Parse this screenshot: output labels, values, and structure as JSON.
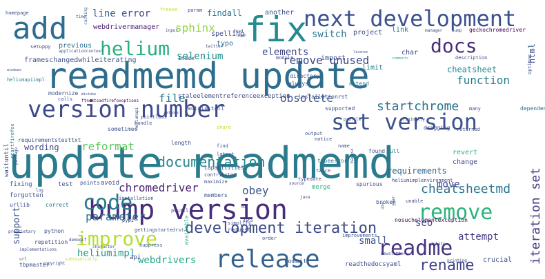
{
  "word_cloud": {
    "words": [
      {
        "text": "update readmemd",
        "color": "#2a7b8e"
      },
      {
        "text": "readmemd update",
        "color": "#2e6d8e"
      },
      {
        "text": "bump version",
        "color": "#472c7a"
      },
      {
        "text": "release",
        "color": "#33638d"
      },
      {
        "text": "fix",
        "color": "#238a8d"
      },
      {
        "text": "add",
        "color": "#2f6c8e"
      },
      {
        "text": "next development",
        "color": "#3b528b"
      },
      {
        "text": "version number",
        "color": "#3e4a89"
      },
      {
        "text": "set version",
        "color": "#3b528b"
      },
      {
        "text": "readme",
        "color": "#46337f"
      },
      {
        "text": "improve",
        "color": "#b5de2b"
      },
      {
        "text": "code",
        "color": "#287c8e"
      },
      {
        "text": "remove",
        "color": "#2db27d"
      },
      {
        "text": "helium",
        "color": "#2ab07f"
      },
      {
        "text": "docs",
        "color": "#472d7b"
      },
      {
        "text": "development iteration",
        "color": "#3e4a89"
      },
      {
        "text": "rename",
        "color": "#414487"
      },
      {
        "text": "iteration set",
        "color": "#433e85"
      },
      {
        "text": "documentation",
        "color": "#24868e"
      },
      {
        "text": "startchrome",
        "color": "#2c728e"
      },
      {
        "text": "cheatsheetmd",
        "color": "#2c728e"
      },
      {
        "text": "sphinx",
        "color": "#8fd744"
      },
      {
        "text": "remove unused",
        "color": "#3f4788"
      },
      {
        "text": "chromedriver",
        "color": "#482475"
      },
      {
        "text": "obey",
        "color": "#3b528b"
      },
      {
        "text": "reformat",
        "color": "#5ec962"
      },
      {
        "text": "file",
        "color": "#2a788e"
      },
      {
        "text": "obsolete",
        "color": "#3b528b"
      },
      {
        "text": "function",
        "color": "#287d8e"
      },
      {
        "text": "parameter",
        "color": "#2a788e"
      },
      {
        "text": "selenium",
        "color": "#228d8d"
      },
      {
        "text": "elements",
        "color": "#3e4989"
      },
      {
        "text": "line",
        "color": "#355f8d"
      },
      {
        "text": "error",
        "color": "#3f4889"
      },
      {
        "text": "switch",
        "color": "#2a788e"
      },
      {
        "text": "webdrivers",
        "color": "#22a785"
      },
      {
        "text": "small",
        "color": "#3b528b"
      },
      {
        "text": "seo",
        "color": "#3e4989"
      },
      {
        "text": "move",
        "color": "#424086"
      },
      {
        "text": "heliumimpl",
        "color": "#1f9a8a"
      },
      {
        "text": "attempt",
        "color": "#453781"
      },
      {
        "text": "support",
        "color": "#3a548c"
      },
      {
        "text": "html",
        "color": "#3b528b"
      },
      {
        "text": "cheatsheet",
        "color": "#24868e"
      },
      {
        "text": "wording",
        "color": "#404688"
      },
      {
        "text": "requirements",
        "color": "#32658e"
      },
      {
        "text": "findall",
        "color": "#2a788e"
      },
      {
        "text": "webdrivermanager",
        "color": "#48186a"
      },
      {
        "text": "frameschangedwhileiterating",
        "color": "#3b528b"
      },
      {
        "text": "staleelementreferenceexception",
        "color": "#3e4989"
      },
      {
        "text": "previous",
        "color": "#2d708e"
      },
      {
        "text": "typo",
        "color": "#2f6b8e"
      },
      {
        "text": "spelling",
        "color": "#3e4989"
      },
      {
        "text": "link",
        "color": "#2c728e"
      },
      {
        "text": "project",
        "color": "#3e4989"
      },
      {
        "text": "import",
        "color": "#3b528b"
      },
      {
        "text": "limit",
        "color": "#287c8e"
      },
      {
        "text": "char",
        "color": "#404688"
      },
      {
        "text": "another",
        "color": "#3b528b"
      },
      {
        "text": "caching",
        "color": "#31688e"
      },
      {
        "text": "homepage",
        "color": "#3e4a89"
      },
      {
        "text": "param",
        "color": "#3b528b"
      },
      {
        "text": "freeze",
        "color": "#bddf26"
      },
      {
        "text": "manager",
        "color": "#3e4a89"
      },
      {
        "text": "bump",
        "color": "#3b528b"
      },
      {
        "text": "geckochromedriver",
        "color": "#440154"
      },
      {
        "text": "setuppy",
        "color": "#424086"
      },
      {
        "text": "applicationcontext",
        "color": "#3b528b"
      },
      {
        "text": "twitter",
        "color": "#3e4989"
      },
      {
        "text": "windows",
        "color": "#404688"
      },
      {
        "text": "heliumapiimpl",
        "color": "#2a788e"
      },
      {
        "text": "index",
        "color": "#3b528b"
      },
      {
        "text": "module",
        "color": "#414487"
      },
      {
        "text": "directory",
        "color": "#3b528b"
      },
      {
        "text": "always",
        "color": "#3e4989"
      },
      {
        "text": "installationrst",
        "color": "#3b528b"
      },
      {
        "text": "supported",
        "color": "#3b528b"
      },
      {
        "text": "extend",
        "color": "#2a788e"
      },
      {
        "text": "many",
        "color": "#404688"
      },
      {
        "text": "returned",
        "color": "#3e4989"
      },
      {
        "text": "dependency",
        "color": "#2c728e"
      },
      {
        "text": "options",
        "color": "#3b528b"
      },
      {
        "text": "description",
        "color": "#404688"
      },
      {
        "text": "comments",
        "color": "#2db27d"
      },
      {
        "text": "license",
        "color": "#3e4989"
      },
      {
        "text": "modernize",
        "color": "#3b528b"
      },
      {
        "text": "calls",
        "color": "#3b528b"
      },
      {
        "text": "mistake",
        "color": "#3e4989"
      },
      {
        "text": "ftnextsadfirefoxoptions",
        "color": "#440154"
      },
      {
        "text": "autoinstall",
        "color": "#3b528b"
      },
      {
        "text": "dragging",
        "color": "#3e4989"
      },
      {
        "text": "waituntil",
        "color": "#3b528b"
      },
      {
        "text": "startfirefox",
        "color": "#2a788e"
      },
      {
        "text": "pointless",
        "color": "#3e4989"
      },
      {
        "text": "handle",
        "color": "#3b528b"
      },
      {
        "text": "methods",
        "color": "#3e4989"
      },
      {
        "text": "share",
        "color": "#bddf26"
      },
      {
        "text": "profile",
        "color": "#3b528b"
      },
      {
        "text": "originally",
        "color": "#3e4989"
      },
      {
        "text": "output",
        "color": "#3b528b"
      },
      {
        "text": "notice",
        "color": "#3e4989"
      },
      {
        "text": "found",
        "color": "#3b528b"
      },
      {
        "text": "pull",
        "color": "#2a788e"
      },
      {
        "text": "change",
        "color": "#3e4989"
      },
      {
        "text": "revert",
        "color": "#2db27d"
      },
      {
        "text": "sometimes",
        "color": "#3b528b"
      },
      {
        "text": "requirementstesttxt",
        "color": "#3b528b"
      },
      {
        "text": "length",
        "color": "#3e4989"
      },
      {
        "text": "find",
        "color": "#3b528b"
      },
      {
        "text": "latest",
        "color": "#3e4989"
      },
      {
        "text": "typeerror",
        "color": "#2a788e"
      },
      {
        "text": "name",
        "color": "#3b528b"
      },
      {
        "text": "capabilities",
        "color": "#3b528b"
      },
      {
        "text": "contributor",
        "color": "#3e4989"
      },
      {
        "text": "maximize",
        "color": "#3b528b"
      },
      {
        "text": "fixing",
        "color": "#3b528b"
      },
      {
        "text": "test",
        "color": "#3e4989"
      },
      {
        "text": "points",
        "color": "#3b528b"
      },
      {
        "text": "avoid",
        "color": "#3e4989"
      },
      {
        "text": "merge",
        "color": "#2db27d"
      },
      {
        "text": "twice",
        "color": "#3b528b"
      },
      {
        "text": "typedate",
        "color": "#3e4989"
      },
      {
        "text": "spurious",
        "color": "#3b528b"
      },
      {
        "text": "heliumimplenvironment",
        "color": "#3e4989"
      },
      {
        "text": "broken",
        "color": "#3b528b"
      },
      {
        "text": "unable",
        "color": "#3e4989"
      },
      {
        "text": "year",
        "color": "#3b528b"
      },
      {
        "text": "forgotten",
        "color": "#3b528b"
      },
      {
        "text": "urllib",
        "color": "#3e4989"
      },
      {
        "text": "correct",
        "color": "#2a788e"
      },
      {
        "text": "members",
        "color": "#3b528b"
      },
      {
        "text": "installation",
        "color": "#3e4989"
      },
      {
        "text": "nosuchelementexception",
        "color": "#440154"
      },
      {
        "text": "gettingstartedrst",
        "color": "#3b528b"
      },
      {
        "text": "pypi",
        "color": "#3e4989"
      },
      {
        "text": "python",
        "color": "#3b528b"
      },
      {
        "text": "demogif",
        "color": "#3e4989"
      },
      {
        "text": "character",
        "color": "#3b528b"
      },
      {
        "text": "proprietary",
        "color": "#3e4989"
      },
      {
        "text": "repetition",
        "color": "#3b528b"
      },
      {
        "text": "implementations",
        "color": "#3e4989"
      },
      {
        "text": "suppress",
        "color": "#3b528b"
      },
      {
        "text": "order",
        "color": "#3e4989"
      },
      {
        "text": "improvements",
        "color": "#3b528b"
      },
      {
        "text": "request",
        "color": "#3e4989"
      },
      {
        "text": "simplify",
        "color": "#3b528b"
      },
      {
        "text": "available",
        "color": "#2db27d"
      },
      {
        "text": "api",
        "color": "#3e4989"
      },
      {
        "text": "commit",
        "color": "#3b528b"
      },
      {
        "text": "readthedocsyaml",
        "color": "#3e4989"
      },
      {
        "text": "crucial",
        "color": "#3b528b"
      },
      {
        "text": "printing",
        "color": "#3e4989"
      },
      {
        "text": "delete",
        "color": "#3b528b"
      },
      {
        "text": "newsletter",
        "color": "#3e4989"
      },
      {
        "text": "tbpmaster",
        "color": "#3b528b"
      },
      {
        "text": "copyright",
        "color": "#3e4989"
      },
      {
        "text": "substantially",
        "color": "#bddf26"
      },
      {
        "text": "url",
        "color": "#3b528b"
      },
      {
        "text": "log",
        "color": "#3e4989"
      },
      {
        "text": "data",
        "color": "#3b528b"
      },
      {
        "text": "source",
        "color": "#3e4989"
      },
      {
        "text": "java",
        "color": "#3b528b"
      },
      {
        "text": "macosx",
        "color": "#3e4989"
      },
      {
        "text": "time",
        "color": "#3b528b"
      },
      {
        "text": "input",
        "color": "#3e4989"
      },
      {
        "text": "dead",
        "color": "#3b528b"
      },
      {
        "text": "path",
        "color": "#3e4989"
      },
      {
        "text": "package",
        "color": "#3b528b"
      },
      {
        "text": "psutil",
        "color": "#3e4989"
      },
      {
        "text": "heliumapi",
        "color": "#3b528b"
      },
      {
        "text": "use",
        "color": "#3e4989"
      },
      {
        "text": "bug",
        "color": "#3b528b"
      },
      {
        "text": "win",
        "color": "#3e4989"
      }
    ]
  }
}
